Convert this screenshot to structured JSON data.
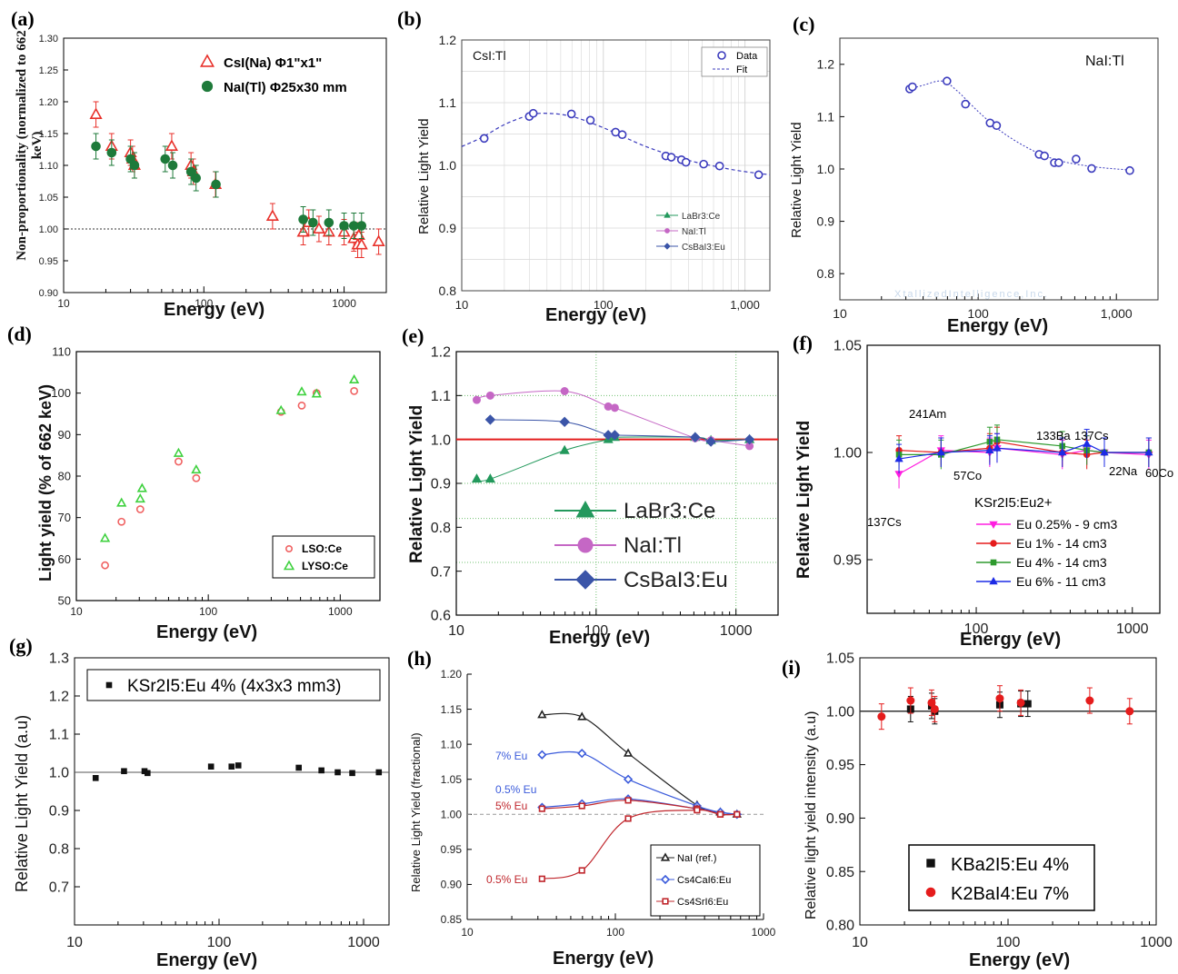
{
  "figure_labels": [
    "(a)",
    "(b)",
    "(c)",
    "(d)",
    "(e)",
    "(f)",
    "(g)",
    "(h)",
    "(i)"
  ],
  "chart_data": [
    {
      "id": "a",
      "type": "scatter",
      "xlabel": "Energy (eV)",
      "ylabel": "Non-proportionality (normalized to 662 keV)",
      "xscale": "log",
      "xlim": [
        10,
        2000
      ],
      "ylim": [
        0.9,
        1.3
      ],
      "xticks": [
        "10",
        "100",
        "1000"
      ],
      "yticks": [
        "0.90",
        "0.95",
        "1.00",
        "1.05",
        "1.10",
        "1.15",
        "1.20",
        "1.25",
        "1.30"
      ],
      "reference_line": 1.0,
      "legend_position": "top-right",
      "series": [
        {
          "name": "CsI(Na) Φ1\"x1\"",
          "marker": "open-triangle",
          "color": "#e8312b",
          "x": [
            17,
            22,
            30,
            31,
            32,
            59,
            81,
            84,
            121,
            309,
            511,
            560,
            662,
            779,
            1000,
            1173,
            1250,
            1275,
            1332,
            1764
          ],
          "y": [
            1.18,
            1.13,
            1.12,
            1.11,
            1.1,
            1.13,
            1.1,
            1.09,
            1.07,
            1.02,
            0.995,
            1.01,
            1.0,
            0.995,
            0.995,
            0.985,
            0.975,
            0.99,
            0.975,
            0.98
          ]
        },
        {
          "name": "NaI(Tl) Φ25x30 mm",
          "marker": "filled-circle",
          "color": "#1e7a3a",
          "x": [
            17,
            22,
            30,
            32,
            53,
            60,
            81,
            88,
            122,
            511,
            600,
            779,
            1000,
            1173,
            1332
          ],
          "y": [
            1.13,
            1.12,
            1.11,
            1.1,
            1.11,
            1.1,
            1.09,
            1.08,
            1.07,
            1.015,
            1.01,
            1.01,
            1.005,
            1.005,
            1.005
          ]
        }
      ]
    },
    {
      "id": "b",
      "type": "line",
      "title": "CsI:Tl",
      "xlabel": "Energy (eV)",
      "ylabel": "Relative Light Yield",
      "xscale": "log",
      "xlim": [
        10,
        1500
      ],
      "ylim": [
        0.8,
        1.2
      ],
      "xticks": [
        "10",
        "100",
        "1,000"
      ],
      "yticks": [
        "0.8",
        "0.9",
        "1.0",
        "1.1",
        "1.2"
      ],
      "legend": [
        "Data",
        "Fit"
      ],
      "ghost_legend": [
        "LaBr3:Ce",
        "NaI:Tl",
        "CsBaI3:Eu"
      ],
      "series": [
        {
          "name": "Data",
          "marker": "open-circle",
          "color": "#3b3bbd",
          "x": [
            14.4,
            30,
            32,
            59.5,
            81,
            122,
            136,
            276,
            302,
            356,
            383,
            511,
            662,
            1250
          ],
          "y": [
            1.043,
            1.078,
            1.083,
            1.082,
            1.072,
            1.053,
            1.049,
            1.015,
            1.013,
            1.009,
            1.005,
            1.002,
            0.999,
            0.985
          ]
        },
        {
          "name": "Fit",
          "style": "dashed",
          "color": "#3b3bbd",
          "x": [
            10,
            14,
            20,
            30,
            40,
            60,
            100,
            200,
            400,
            700,
            1000,
            1500
          ],
          "y": [
            1.03,
            1.045,
            1.065,
            1.08,
            1.083,
            1.078,
            1.06,
            1.03,
            1.008,
            0.996,
            0.99,
            0.985
          ]
        }
      ]
    },
    {
      "id": "c",
      "type": "line",
      "title": "NaI:Tl",
      "xlabel": "Energy (eV)",
      "ylabel": "Relative Light Yield",
      "xscale": "log",
      "xlim": [
        10,
        2000
      ],
      "ylim": [
        0.75,
        1.25
      ],
      "xticks": [
        "10",
        "100",
        "1,000"
      ],
      "yticks": [
        "0.8",
        "0.9",
        "1.0",
        "1.1",
        "1.2"
      ],
      "watermark": "XtallizedIntelligence,Inc.",
      "series": [
        {
          "name": "Data",
          "marker": "open-circle",
          "color": "#3b3bbd",
          "x": [
            32,
            33.5,
            59.5,
            81,
            122,
            136,
            276,
            302,
            356,
            383,
            511,
            662,
            1250
          ],
          "y": [
            1.153,
            1.157,
            1.168,
            1.124,
            1.088,
            1.083,
            1.028,
            1.025,
            1.012,
            1.012,
            1.019,
            1.001,
            0.997
          ]
        },
        {
          "name": "Fit",
          "style": "dashed",
          "color": "#3b3bbd",
          "x": [
            30,
            40,
            55,
            70,
            100,
            150,
            250,
            400,
            700,
            1250
          ],
          "y": [
            1.15,
            1.16,
            1.168,
            1.15,
            1.11,
            1.07,
            1.035,
            1.015,
            1.004,
            0.998
          ]
        }
      ]
    },
    {
      "id": "d",
      "type": "scatter",
      "xlabel": "Energy (eV)",
      "ylabel": "Light yield (% of 662 keV)",
      "xscale": "log",
      "xlim": [
        10,
        2000
      ],
      "ylim": [
        50,
        110
      ],
      "xticks": [
        "10",
        "100",
        "1000"
      ],
      "yticks": [
        "50",
        "60",
        "70",
        "80",
        "90",
        "100",
        "110"
      ],
      "legend_position": "bottom-right",
      "series": [
        {
          "name": "LSO:Ce",
          "marker": "open-circle",
          "color": "#f06262",
          "x": [
            16.5,
            22,
            30.5,
            59.5,
            81,
            356,
            511,
            662,
            1275
          ],
          "y": [
            58.5,
            69,
            72,
            83.5,
            79.5,
            95.5,
            97,
            100,
            100.5
          ]
        },
        {
          "name": "LYSO:Ce",
          "marker": "open-triangle",
          "color": "#3fd13f",
          "x": [
            16.5,
            22,
            30.5,
            31.5,
            59.5,
            81,
            356,
            511,
            662,
            1275
          ],
          "y": [
            65,
            73.5,
            74.5,
            77,
            85.5,
            81.5,
            95.8,
            100.3,
            99.8,
            103.2
          ]
        }
      ]
    },
    {
      "id": "e",
      "type": "line",
      "xlabel": "Energy (eV)",
      "ylabel": "Relative Light Yield",
      "xscale": "log",
      "xlim": [
        10,
        2000
      ],
      "ylim": [
        0.6,
        1.2
      ],
      "xticks": [
        "10",
        "100",
        "1000"
      ],
      "yticks": [
        "0.6",
        "0.7",
        "0.8",
        "0.9",
        "1.0",
        "1.1",
        "1.2"
      ],
      "reference_line": 1.0,
      "legend_position": "bottom-center",
      "series": [
        {
          "name": "LaBr3:Ce",
          "marker": "filled-triangle",
          "color": "#23995c",
          "x": [
            14,
            17.5,
            59.5,
            122,
            136,
            511,
            662,
            1250
          ],
          "y": [
            0.91,
            0.91,
            0.975,
            1.0,
            1.005,
            1.005,
            0.998,
            1.0
          ]
        },
        {
          "name": "NaI:Tl",
          "marker": "filled-circle",
          "color": "#c567c5",
          "x": [
            14,
            17.5,
            59.5,
            122,
            136,
            511,
            662,
            1250
          ],
          "y": [
            1.09,
            1.1,
            1.11,
            1.075,
            1.072,
            1.003,
            0.998,
            0.985
          ]
        },
        {
          "name": "CsBaI3:Eu",
          "marker": "filled-diamond",
          "color": "#3b55a8",
          "x": [
            17.5,
            59.5,
            122,
            136,
            511,
            662,
            1250
          ],
          "y": [
            1.045,
            1.04,
            1.01,
            1.01,
            1.005,
            0.995,
            1.0
          ]
        }
      ]
    },
    {
      "id": "f",
      "type": "line",
      "xlabel": "Energy (eV)",
      "ylabel": "Relative Light Yield",
      "xscale": "log",
      "xlim": [
        20,
        1500
      ],
      "ylim": [
        0.925,
        1.05
      ],
      "xticks": [
        "100",
        "1000"
      ],
      "yticks": [
        "0.95",
        "1.00",
        "1.05"
      ],
      "legend_title": "KSr2I5:Eu2+",
      "source_labels": [
        "241Am",
        "57Co",
        "133Ba",
        "137Cs",
        "22Na",
        "60Co",
        "137Cs"
      ],
      "series": [
        {
          "name": "Eu 0.25% - 9 cm3",
          "marker": "down-triangle",
          "color": "#ff1ee0",
          "x": [
            32,
            59.5,
            122,
            136,
            356,
            511,
            662,
            1275
          ],
          "y": [
            0.99,
            1.001,
            1.0,
            1.002,
            0.999,
            1.001,
            1.0,
            0.999
          ]
        },
        {
          "name": "Eu 1% - 14 cm3",
          "marker": "filled-circle",
          "color": "#e51c1c",
          "x": [
            32,
            59.5,
            122,
            136,
            356,
            511,
            662,
            1275
          ],
          "y": [
            1.001,
            1.0,
            1.002,
            1.005,
            1.0,
            0.999,
            1.0,
            1.0
          ]
        },
        {
          "name": "Eu 4% - 14 cm3",
          "marker": "filled-square",
          "color": "#2e9a2e",
          "x": [
            32,
            59.5,
            122,
            136,
            356,
            511,
            662,
            1275
          ],
          "y": [
            0.999,
            0.999,
            1.005,
            1.006,
            1.003,
            1.001,
            1.0,
            1.0
          ]
        },
        {
          "name": "Eu 6% - 11 cm3",
          "marker": "filled-triangle",
          "color": "#1c2be5",
          "x": [
            32,
            59.5,
            122,
            136,
            356,
            511,
            662,
            1275
          ],
          "y": [
            0.997,
            1.0,
            1.001,
            1.002,
            1.0,
            1.004,
            1.0,
            1.0
          ]
        }
      ]
    },
    {
      "id": "g",
      "type": "scatter",
      "xlabel": "Energy (eV)",
      "ylabel": "Relative Light Yield (a.u)",
      "xscale": "log",
      "xlim": [
        10,
        1500
      ],
      "ylim": [
        0.6,
        1.3
      ],
      "xticks": [
        "10",
        "100",
        "1000"
      ],
      "yticks": [
        "0.7",
        "0.8",
        "0.9",
        "1.0",
        "1.1",
        "1.2",
        "1.3"
      ],
      "reference_line": 1.0,
      "legend_position": "top",
      "series": [
        {
          "name": "KSr2I5:Eu 4% (4x3x3 mm3)",
          "marker": "filled-square",
          "color": "#111111",
          "x": [
            14,
            22,
            30.5,
            32,
            88,
            122,
            136,
            356,
            511,
            662,
            835,
            1275
          ],
          "y": [
            0.985,
            1.003,
            1.003,
            0.998,
            1.015,
            1.015,
            1.018,
            1.012,
            1.005,
            1.0,
            0.998,
            1.0
          ]
        }
      ]
    },
    {
      "id": "h",
      "type": "line",
      "xlabel": "Energy (eV)",
      "ylabel": "Relative Light Yield (fractional)",
      "xscale": "log",
      "xlim": [
        10,
        1000
      ],
      "ylim": [
        0.85,
        1.2
      ],
      "xticks": [
        "10",
        "100",
        "1000"
      ],
      "yticks": [
        "0.85",
        "0.90",
        "0.95",
        "1.00",
        "1.05",
        "1.10",
        "1.15",
        "1.20"
      ],
      "reference_line": 1.0,
      "legend_position": "bottom-right",
      "series": [
        {
          "name": "NaI (ref.)",
          "marker": "open-triangle",
          "color": "#222222",
          "x": [
            32,
            59.5,
            122,
            356,
            511,
            662
          ],
          "y": [
            1.142,
            1.139,
            1.087,
            1.013,
            1.003,
            1.0
          ]
        },
        {
          "name": "Cs4CaI6:Eu",
          "marker": "open-diamond",
          "color": "#3b5bdb",
          "x": [
            32,
            59.5,
            122,
            356,
            511,
            662
          ],
          "y": [
            1.085,
            1.087,
            1.05,
            1.012,
            1.003,
            1.0
          ]
        },
        {
          "name": "Cs4CaI6:Eu 0.5%",
          "marker": "open-diamond",
          "color": "#3b5bdb",
          "x": [
            32,
            59.5,
            122,
            356,
            511,
            662
          ],
          "y": [
            1.01,
            1.015,
            1.022,
            1.008,
            1.003,
            1.0
          ]
        },
        {
          "name": "Cs4SrI6:Eu",
          "marker": "open-square",
          "color": "#c0272d",
          "x": [
            32,
            59.5,
            122,
            356,
            511,
            662
          ],
          "y": [
            1.008,
            1.012,
            1.02,
            1.008,
            1.0,
            1.0
          ]
        },
        {
          "name": "Cs4SrI6:Eu 0.5%",
          "marker": "open-square",
          "color": "#c0272d",
          "x": [
            32,
            59.5,
            122,
            356,
            511,
            662
          ],
          "y": [
            0.908,
            0.92,
            0.994,
            1.006,
            1.0,
            1.0
          ]
        }
      ],
      "annotations": [
        "7% Eu",
        "0.5% Eu",
        "5% Eu",
        "0.5% Eu"
      ]
    },
    {
      "id": "i",
      "type": "scatter",
      "xlabel": "Energy (eV)",
      "ylabel": "Relative light yield intensity (a.u)",
      "xscale": "log",
      "xlim": [
        10,
        1000
      ],
      "ylim": [
        0.8,
        1.05
      ],
      "xticks": [
        "10",
        "100",
        "1000"
      ],
      "yticks": [
        "0.80",
        "0.85",
        "0.90",
        "0.95",
        "1.00",
        "1.05"
      ],
      "reference_line": 1.0,
      "legend_position": "bottom-center",
      "series": [
        {
          "name": "KBa2I5:Eu 4%",
          "marker": "filled-square",
          "color": "#111111",
          "x": [
            22,
            30.5,
            32,
            88,
            122,
            136
          ],
          "y": [
            1.002,
            1.005,
            1.0,
            1.006,
            1.007,
            1.007
          ]
        },
        {
          "name": "K2BaI4:Eu 7%",
          "marker": "filled-circle",
          "color": "#e51c1c",
          "x": [
            14,
            22,
            30.5,
            32,
            88,
            122,
            356,
            662
          ],
          "y": [
            0.995,
            1.01,
            1.008,
            1.002,
            1.012,
            1.008,
            1.01,
            1.0
          ]
        }
      ]
    }
  ]
}
